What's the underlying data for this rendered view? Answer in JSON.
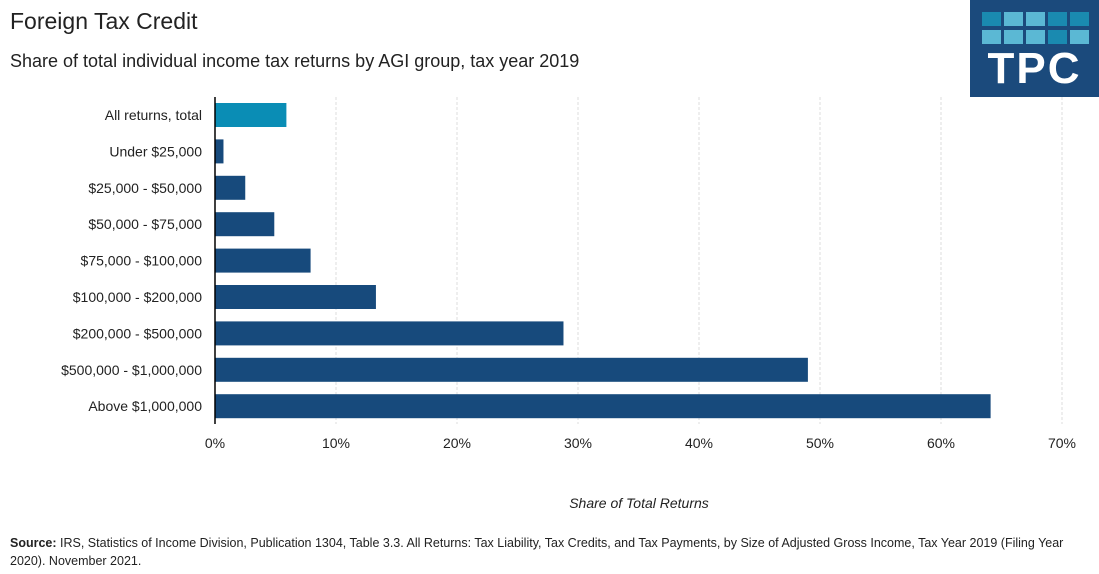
{
  "logo_text": "TPC",
  "chart_data": {
    "type": "bar",
    "orientation": "horizontal",
    "title": "Foreign Tax Credit",
    "subtitle": "Share of total individual income tax returns by AGI group, tax year 2019",
    "xlabel": "Share of Total Returns",
    "ylabel": "",
    "xlim": [
      0,
      70
    ],
    "xticks": [
      "0%",
      "10%",
      "20%",
      "30%",
      "40%",
      "50%",
      "60%",
      "70%"
    ],
    "grid": true,
    "categories": [
      "All returns, total",
      "Under $25,000",
      "$25,000 - $50,000",
      "$50,000 - $75,000",
      "$75,000 - $100,000",
      "$100,000 - $200,000",
      "$200,000 - $500,000",
      "$500,000 - $1,000,000",
      "Above $1,000,000"
    ],
    "values": [
      5.9,
      0.7,
      2.5,
      4.9,
      7.9,
      13.3,
      28.8,
      49.0,
      64.1
    ],
    "colors": {
      "total": "#0a8db5",
      "group": "#174a7c"
    }
  },
  "source": {
    "label": "Source:",
    "text": " IRS, Statistics of Income Division, Publication 1304, Table 3.3.   All Returns: Tax Liability, Tax Credits, and Tax Payments, by Size of Adjusted Gross Income, Tax Year 2019 (Filing Year 2020). November 2021."
  }
}
